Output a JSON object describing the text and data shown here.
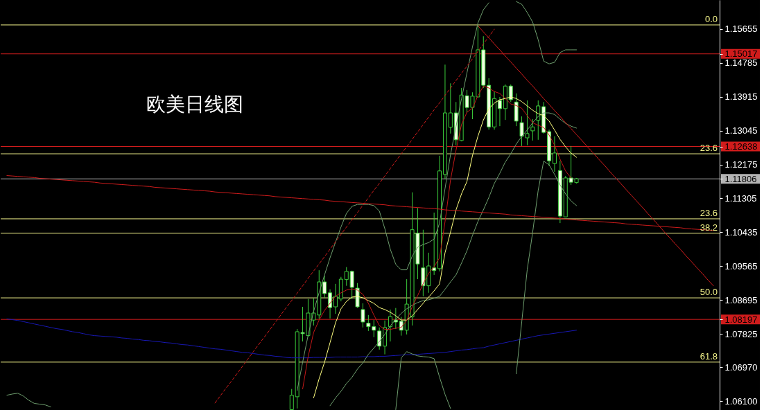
{
  "chart_data": {
    "type": "candlestick",
    "title": "欧美日线图",
    "color": "#3ccf3c",
    "categories": [
      null,
      null,
      null,
      null,
      null,
      null,
      null,
      null,
      null,
      null,
      null,
      null,
      null,
      null,
      null,
      null,
      null,
      null,
      null,
      null,
      null,
      null,
      null,
      null,
      null,
      null,
      null,
      null,
      null,
      null,
      null,
      null,
      null,
      null,
      null,
      null,
      null,
      null,
      null,
      null,
      null,
      null,
      null,
      null,
      null,
      null,
      null,
      null,
      null,
      null,
      null,
      null,
      null,
      null,
      null,
      null,
      null,
      null,
      null,
      null,
      null,
      null,
      null,
      null,
      null,
      null,
      null,
      null,
      null,
      null,
      null,
      null,
      null,
      null,
      null,
      null,
      null,
      null,
      null,
      null,
      null,
      null,
      null,
      null,
      null,
      null,
      null,
      null,
      null,
      null,
      null,
      null,
      null,
      null,
      null,
      null,
      null,
      null,
      null,
      null,
      null,
      null,
      null,
      null,
      null,
      null,
      null,
      null,
      null,
      null,
      null,
      null,
      null,
      null,
      null,
      null,
      null,
      null,
      null,
      null,
      null,
      null,
      null,
      null,
      null,
      null,
      null,
      null,
      null,
      null
    ],
    "ohlc": [
      null,
      null,
      null,
      null,
      null,
      null,
      null,
      null,
      null,
      null,
      null,
      null,
      null,
      null,
      null,
      null,
      null,
      null,
      null,
      null,
      null,
      null,
      null,
      null,
      null,
      null,
      null,
      null,
      null,
      null,
      null,
      null,
      null,
      null,
      null,
      null,
      null,
      null,
      null,
      null,
      null,
      null,
      null,
      null,
      null,
      null,
      null,
      null,
      null,
      null,
      null,
      null,
      [
        1.0588,
        1.0641,
        1.0588,
        1.0625
      ],
      [
        1.0621,
        1.0795,
        1.0591,
        1.0788
      ],
      [
        1.0786,
        1.0852,
        1.0763,
        1.0783
      ],
      [
        1.0778,
        1.0872,
        1.0774,
        1.0836
      ],
      [
        1.0818,
        1.0874,
        1.0804,
        1.0836
      ],
      [
        1.0831,
        1.0946,
        1.0822,
        1.0916
      ],
      [
        1.0916,
        1.0932,
        1.0875,
        1.0886
      ],
      [
        1.0888,
        1.0897,
        1.0822,
        1.085
      ],
      [
        1.0852,
        1.0911,
        1.0834,
        1.0879
      ],
      [
        1.0872,
        1.0929,
        1.0866,
        1.0923
      ],
      [
        1.0922,
        1.0954,
        1.0906,
        1.0943
      ],
      [
        1.0943,
        1.0945,
        1.0872,
        1.0902
      ],
      [
        1.09,
        1.0913,
        1.0849,
        1.0852
      ],
      [
        1.0845,
        1.0861,
        1.0799,
        1.0813
      ],
      [
        1.081,
        1.0831,
        1.079,
        1.0801
      ],
      [
        1.0801,
        1.0818,
        1.0774,
        1.0792
      ],
      [
        1.079,
        1.0799,
        1.0742,
        1.0751
      ],
      [
        1.0751,
        1.0817,
        1.073,
        1.0799
      ],
      [
        1.0801,
        1.0845,
        1.0763,
        1.0827
      ],
      [
        1.0818,
        1.0849,
        1.0795,
        1.0813
      ],
      [
        1.0815,
        1.0826,
        1.0778,
        1.0792
      ],
      [
        1.0792,
        1.0923,
        1.0781,
        1.0859
      ],
      [
        1.0826,
        1.1146,
        1.0804,
        1.105
      ],
      [
        1.1041,
        1.1106,
        1.0923,
        1.0962
      ],
      [
        1.0952,
        1.105,
        1.0879,
        1.0906
      ],
      [
        1.0906,
        1.0991,
        1.0888,
        1.0957
      ],
      [
        1.0952,
        1.1094,
        1.0934,
        1.0945
      ],
      [
        1.095,
        1.124,
        1.0943,
        1.1201
      ],
      [
        1.1192,
        1.1474,
        1.1181,
        1.135
      ],
      [
        1.1313,
        1.1426,
        1.1297,
        1.135
      ],
      [
        1.135,
        1.1378,
        1.1267,
        1.1281
      ],
      [
        1.1279,
        1.1414,
        1.1277,
        1.1396
      ],
      [
        1.1394,
        1.1409,
        1.135,
        1.1364
      ],
      [
        1.1364,
        1.1403,
        1.1334,
        1.1393
      ],
      [
        1.1391,
        1.1575,
        1.1391,
        1.1512
      ],
      [
        1.1512,
        1.1547,
        1.1414,
        1.1421
      ],
      [
        1.1421,
        1.1439,
        1.1307,
        1.1314
      ],
      [
        1.1314,
        1.1405,
        1.1307,
        1.1387
      ],
      [
        1.1382,
        1.1391,
        1.1316,
        1.1361
      ],
      [
        1.1361,
        1.1423,
        1.1332,
        1.1419
      ],
      [
        1.1419,
        1.1423,
        1.1378,
        1.1384
      ],
      [
        1.1378,
        1.14,
        1.1316,
        1.1329
      ],
      [
        1.1325,
        1.1341,
        1.1265,
        1.129
      ],
      [
        1.1286,
        1.1382,
        1.1267,
        1.1297
      ],
      [
        1.1304,
        1.1334,
        1.1279,
        1.1314
      ],
      [
        1.1331,
        1.1382,
        1.1281,
        1.1368
      ],
      [
        1.1366,
        1.1378,
        1.1297,
        1.13
      ],
      [
        1.1302,
        1.1307,
        1.1213,
        1.1227
      ],
      [
        1.122,
        1.129,
        1.1199,
        1.1247
      ],
      [
        1.1202,
        1.1227,
        1.1067,
        1.1085
      ],
      [
        1.1083,
        1.1188,
        1.1083,
        1.1183
      ],
      [
        1.1183,
        1.1265,
        1.1165,
        1.1172
      ],
      [
        1.1171,
        1.1183,
        1.1169,
        1.1181
      ],
      null,
      null,
      null,
      null,
      null,
      null,
      null,
      null,
      null,
      null,
      null,
      null,
      null,
      null,
      null,
      null,
      null,
      null,
      null,
      null,
      null,
      null,
      null,
      null,
      null
    ],
    "colors": [
      null,
      null,
      null,
      null,
      null,
      null,
      null,
      null,
      null,
      null,
      null,
      null,
      null,
      null,
      null,
      null,
      null,
      null,
      null,
      null,
      null,
      null,
      null,
      null,
      null,
      null,
      null,
      null,
      null,
      null,
      null,
      null,
      null,
      null,
      null,
      null,
      null,
      null,
      null,
      null,
      null,
      null,
      null,
      null,
      null,
      null,
      null,
      null,
      null,
      null,
      null,
      null,
      "#000000",
      "#000000",
      "#f0ffe0",
      "#000000",
      "#000000",
      "#000000",
      "#f0ffe0",
      "#f0ffe0",
      "#000000",
      "#000000",
      "#000000",
      "#f0ffe0",
      "#f0ffe0",
      "#f0ffe0",
      "#f0ffe0",
      "#f0ffe0",
      "#f0ffe0",
      "#000000",
      "#000000",
      "#f0ffe0",
      "#f0ffe0",
      "#000000",
      "#000000",
      "#f0ffe0",
      "#f0ffe0",
      "#000000",
      "#f0ffe0",
      "#000000",
      "#000000",
      "#000000",
      "#f0ffe0",
      "#000000",
      "#f0ffe0",
      "#000000",
      "#000000",
      "#f0ffe0",
      "#f0ffe0",
      "#000000",
      "#f0ffe0",
      "#000000",
      "#f0ffe0",
      "#f0ffe0",
      "#f0ffe0",
      "#000000",
      "#000000",
      "#000000",
      "#f0ffe0",
      "#f0ffe0",
      "#000000",
      "#f0ffe0",
      "#000000",
      "#f0ffe0",
      "#000000",
      null,
      null,
      null,
      null,
      null,
      null,
      null,
      null,
      null,
      null,
      null,
      null,
      null,
      null,
      null,
      null,
      null,
      null,
      null,
      null,
      null,
      null,
      null,
      null,
      null
    ],
    "series": [
      {
        "type": "line",
        "color": "#1818b4",
        "values": [
          1.0821,
          1.0819,
          1.0817,
          1.0814,
          1.0811,
          1.0808,
          1.0805,
          1.0802,
          1.0799,
          1.0796,
          1.0794,
          1.0791,
          1.0788,
          1.0786,
          1.0783,
          1.078,
          1.0778,
          1.0777,
          1.0776,
          1.0775,
          1.0774,
          1.0772,
          1.0771,
          1.0769,
          1.0768,
          1.0766,
          1.0765,
          1.0763,
          1.0762,
          1.076,
          1.0759,
          1.0757,
          1.0755,
          1.0754,
          1.0752,
          1.075,
          1.0748,
          1.0746,
          1.0744,
          1.0743,
          1.0741,
          1.0739,
          1.0737,
          1.0735,
          1.0734,
          1.0732,
          1.073,
          1.0728,
          1.0727,
          1.0725,
          1.0724,
          1.0722,
          1.0721,
          1.0721,
          1.0721,
          1.0721,
          1.0722,
          1.0722,
          1.0722,
          1.0722,
          1.0723,
          1.0723,
          1.0723,
          1.0723,
          1.0723,
          1.0724,
          1.0724,
          1.0724,
          1.0725,
          1.0725,
          1.0726,
          1.0727,
          1.0728,
          1.0729,
          1.0729,
          1.073,
          1.0731,
          1.0732,
          1.0733,
          1.0734,
          1.0735,
          1.0737,
          1.0739,
          1.0741,
          1.0742,
          1.0744,
          1.0746,
          1.0747,
          1.0751,
          1.0754,
          1.0757,
          1.076,
          1.0763,
          1.0766,
          1.0769,
          1.0772,
          1.0775,
          1.0778,
          1.078,
          1.0782,
          1.0784,
          1.0786,
          1.0788,
          1.079,
          1.0792,
          null,
          null,
          null,
          null,
          null,
          null,
          null,
          null,
          null,
          null,
          null,
          null,
          null,
          null,
          null,
          null,
          null,
          null,
          null,
          null,
          null,
          null,
          null,
          null,
          null
        ]
      },
      {
        "type": "line",
        "color": "#6e9e6e",
        "values": [
          1.0625,
          1.0628,
          1.063,
          1.0623,
          1.0612,
          1.0604,
          1.0602,
          1.06,
          1.0595,
          null,
          null,
          null,
          null,
          null,
          null,
          null,
          null,
          null,
          null,
          null,
          null,
          null,
          null,
          null,
          null,
          null,
          null,
          null,
          null,
          null,
          null,
          null,
          null,
          null,
          null,
          null,
          null,
          null,
          null,
          null,
          null,
          null,
          null,
          null,
          null,
          null,
          null,
          null,
          null,
          null,
          null,
          null,
          null,
          1.0637,
          1.071,
          1.0779,
          1.084,
          1.0888,
          1.0934,
          1.0978,
          1.1018,
          1.1057,
          1.1092,
          1.111,
          1.1115,
          1.1115,
          1.1115,
          1.1112,
          1.1098,
          1.1053,
          1.1,
          1.0961,
          1.0947,
          1.0947,
          1.0982,
          1.1005,
          1.1012,
          1.1017,
          1.1026,
          1.1067,
          1.1156,
          1.1243,
          1.1315,
          1.1386,
          1.1453,
          1.1519,
          1.1581,
          1.1615,
          1.1633,
          null,
          null,
          null,
          null,
          1.1636,
          1.1629,
          1.1608,
          1.1583,
          1.1538,
          1.1483,
          1.1476,
          1.148,
          1.1505,
          1.1512,
          1.1512,
          1.1512,
          null,
          null,
          null,
          null,
          null,
          null,
          null,
          null,
          null,
          null,
          null,
          null,
          null,
          null,
          null,
          null,
          null,
          null,
          null,
          null,
          null,
          null,
          null,
          null,
          null
        ]
      },
      {
        "type": "line",
        "color": "#6e9e6e",
        "values": [
          null,
          null,
          null,
          null,
          null,
          null,
          null,
          null,
          null,
          null,
          null,
          null,
          null,
          null,
          null,
          null,
          null,
          null,
          null,
          null,
          null,
          null,
          null,
          null,
          null,
          null,
          null,
          null,
          null,
          null,
          null,
          null,
          null,
          null,
          null,
          null,
          null,
          null,
          null,
          null,
          null,
          null,
          null,
          null,
          null,
          null,
          null,
          null,
          null,
          null,
          null,
          null,
          null,
          null,
          null,
          null,
          null,
          null,
          null,
          1.0598,
          1.0618,
          1.0635,
          1.0655,
          1.0671,
          1.0692,
          1.0708,
          1.073,
          1.0746,
          1.0763,
          1.0781,
          1.0803,
          1.082,
          1.0835,
          1.0847,
          1.0856,
          1.0863,
          1.0868,
          1.087,
          1.0874,
          1.0879,
          1.0897,
          1.0916,
          1.0934,
          1.0964,
          1.0996,
          1.1035,
          1.1071,
          1.1101,
          1.1133,
          1.1169,
          1.1195,
          1.1224,
          1.1245,
          1.127,
          1.129,
          1.1306,
          1.1325,
          1.1341,
          1.135,
          1.135,
          1.1346,
          1.1334,
          1.1323,
          1.1316,
          1.1311,
          null,
          null,
          null,
          null,
          null,
          null,
          null,
          null,
          null,
          null,
          null,
          null,
          null,
          null,
          null,
          null,
          null,
          null,
          null,
          null,
          null,
          null,
          null,
          null,
          null
        ]
      },
      {
        "type": "line",
        "color": "#6e9e6e",
        "values": [
          null,
          null,
          null,
          null,
          null,
          null,
          null,
          null,
          null,
          null,
          null,
          null,
          null,
          null,
          null,
          null,
          null,
          null,
          null,
          null,
          null,
          null,
          null,
          null,
          null,
          null,
          null,
          null,
          null,
          null,
          null,
          null,
          null,
          null,
          null,
          null,
          null,
          null,
          null,
          null,
          null,
          null,
          null,
          null,
          null,
          null,
          null,
          null,
          null,
          null,
          null,
          null,
          null,
          null,
          null,
          null,
          null,
          null,
          null,
          null,
          null,
          null,
          null,
          null,
          null,
          null,
          null,
          null,
          null,
          null,
          null,
          1.0588,
          1.0721,
          1.0737,
          1.0731,
          1.0726,
          1.0724,
          1.0723,
          1.0719,
          1.0671,
          1.0627,
          1.0591,
          null,
          null,
          null,
          null,
          null,
          null,
          null,
          null,
          null,
          null,
          null,
          1.068,
          1.0813,
          1.0947,
          1.1044,
          1.1151,
          1.1226,
          1.1217,
          1.1192,
          1.1165,
          1.1142,
          1.1124,
          1.1112,
          null,
          null,
          null,
          null,
          null,
          null,
          null,
          null,
          null,
          null,
          null,
          null,
          null,
          null,
          null,
          null,
          null,
          null,
          null,
          null,
          null,
          null,
          null,
          null,
          null
        ]
      },
      {
        "type": "line",
        "color": "#ffff80",
        "values": [
          null,
          null,
          null,
          null,
          null,
          null,
          null,
          null,
          null,
          null,
          null,
          null,
          null,
          null,
          null,
          null,
          null,
          null,
          null,
          null,
          null,
          null,
          null,
          null,
          null,
          null,
          null,
          null,
          null,
          null,
          null,
          null,
          null,
          null,
          null,
          null,
          null,
          null,
          null,
          null,
          null,
          null,
          null,
          null,
          null,
          null,
          null,
          null,
          null,
          null,
          null,
          null,
          null,
          null,
          null,
          null,
          1.0618,
          1.0667,
          1.071,
          1.076,
          1.0811,
          1.0847,
          1.0866,
          1.0877,
          1.0879,
          1.0875,
          1.0868,
          1.0861,
          1.085,
          1.0845,
          1.0838,
          1.0829,
          1.0818,
          1.0818,
          1.0829,
          1.0845,
          1.0861,
          1.0877,
          1.0893,
          1.0911,
          1.0991,
          1.1044,
          1.1101,
          1.1142,
          1.1174,
          1.124,
          1.129,
          1.1332,
          1.1361,
          1.1375,
          1.1384,
          1.1387,
          1.1391,
          1.1387,
          1.1379,
          1.1368,
          1.1357,
          1.1348,
          1.1343,
          1.1329,
          1.1306,
          1.1282,
          1.1263,
          1.1247,
          1.1236,
          null,
          null,
          null,
          null,
          null,
          null,
          null,
          null,
          null,
          null,
          null,
          null,
          null,
          null,
          null,
          null,
          null,
          null,
          null,
          null,
          null,
          null,
          null,
          null,
          null
        ]
      },
      {
        "type": "line",
        "color": "#c41818",
        "values": [
          null,
          null,
          null,
          null,
          null,
          null,
          null,
          null,
          null,
          null,
          null,
          null,
          null,
          null,
          null,
          null,
          null,
          null,
          null,
          null,
          null,
          null,
          null,
          null,
          null,
          null,
          null,
          null,
          null,
          null,
          null,
          null,
          null,
          null,
          null,
          null,
          null,
          null,
          null,
          null,
          null,
          null,
          null,
          null,
          null,
          null,
          null,
          null,
          null,
          null,
          null,
          null,
          null,
          null,
          1.0641,
          1.0724,
          1.0786,
          1.0818,
          1.0843,
          1.0861,
          1.0879,
          1.0888,
          1.0895,
          1.0898,
          1.0895,
          1.0884,
          1.0861,
          1.0831,
          1.0804,
          1.0794,
          1.0794,
          1.0797,
          1.0799,
          1.0817,
          1.0852,
          1.0881,
          1.0911,
          1.0938,
          1.0955,
          1.0978,
          1.1071,
          1.1178,
          1.1254,
          1.132,
          1.1352,
          1.1362,
          1.1394,
          1.1419,
          1.1414,
          1.1405,
          1.14,
          1.1387,
          1.1373,
          1.1369,
          1.1362,
          1.1343,
          1.1325,
          1.1318,
          1.1313,
          1.1293,
          1.1267,
          1.1231,
          1.1201,
          1.1183,
          null,
          null,
          null,
          null,
          null,
          null,
          null,
          null,
          null,
          null,
          null,
          null,
          null,
          null,
          null,
          null,
          null,
          null,
          null,
          null,
          null,
          null,
          null,
          null,
          null,
          null
        ]
      },
      {
        "type": "line",
        "color": "#d01c1c",
        "values": [
          1.1189,
          1.1188,
          1.1187,
          1.1186,
          1.1185,
          1.1184,
          1.1182,
          1.1181,
          1.118,
          1.1179,
          1.1178,
          1.1177,
          1.1176,
          1.1175,
          1.1174,
          1.1173,
          1.1172,
          1.117,
          1.1169,
          1.1168,
          1.1167,
          1.1166,
          1.1165,
          1.1164,
          1.1163,
          1.1162,
          1.1161,
          1.1159,
          1.1158,
          1.1157,
          1.1156,
          1.1155,
          1.1154,
          1.1153,
          1.1152,
          1.1151,
          1.115,
          1.1149,
          1.1147,
          1.1146,
          1.1145,
          1.1144,
          1.1143,
          1.1142,
          1.1141,
          1.114,
          1.1139,
          1.1138,
          1.1137,
          1.1135,
          1.1134,
          1.1133,
          1.1132,
          1.1131,
          1.113,
          1.1129,
          1.1128,
          1.1127,
          1.1126,
          1.1124,
          1.1123,
          1.1122,
          1.1121,
          1.112,
          1.1119,
          1.1118,
          1.1117,
          1.1116,
          1.1115,
          1.1114,
          1.1112,
          1.1111,
          1.111,
          1.1109,
          1.1108,
          1.1107,
          1.1106,
          1.1105,
          1.1104,
          1.1103,
          1.1101,
          1.11,
          1.1099,
          1.1098,
          1.1097,
          1.1096,
          1.1095,
          1.1094,
          1.1093,
          1.1092,
          1.1091,
          1.109,
          1.1088,
          1.1087,
          1.1086,
          1.1085,
          1.1084,
          1.1083,
          1.1082,
          1.1081,
          1.108,
          1.1079,
          1.1077,
          1.1076,
          1.1075,
          1.1074,
          1.1073,
          1.1072,
          1.1071,
          1.107,
          1.1069,
          1.1068,
          1.1067,
          1.1065,
          1.1064,
          1.1063,
          1.1062,
          1.1061,
          1.106,
          1.1059,
          1.1058,
          1.1057,
          1.1056,
          1.1055,
          1.1053,
          1.1052,
          1.1051,
          1.105,
          1.1049,
          1.1048
        ]
      },
      {
        "type": "line",
        "color": "#d01c1c",
        "values": [
          null,
          null,
          null,
          null,
          null,
          null,
          null,
          null,
          null,
          null,
          null,
          null,
          null,
          null,
          null,
          null,
          null,
          null,
          null,
          null,
          null,
          null,
          null,
          null,
          null,
          null,
          null,
          null,
          null,
          null,
          null,
          null,
          null,
          null,
          null,
          null,
          null,
          null,
          null,
          null,
          null,
          null,
          null,
          null,
          null,
          null,
          null,
          null,
          null,
          null,
          null,
          null,
          null,
          null,
          null,
          null,
          null,
          null,
          null,
          null,
          null,
          null,
          null,
          null,
          null,
          null,
          null,
          null,
          null,
          null,
          null,
          null,
          null,
          null,
          null,
          null,
          null,
          null,
          null,
          null,
          null,
          null,
          null,
          null,
          null,
          null,
          1.1574,
          1.1558,
          1.1543,
          1.1527,
          1.1512,
          1.1496,
          1.1481,
          1.1465,
          1.145,
          1.1434,
          1.1419,
          1.1403,
          1.1387,
          1.1372,
          1.1356,
          1.1341,
          1.1325,
          1.131,
          1.1294,
          1.1279,
          1.1263,
          1.1248,
          1.1232,
          1.1217,
          1.1201,
          1.1185,
          1.117,
          1.1154,
          1.1139,
          1.1123,
          1.1108,
          1.1092,
          1.1077,
          1.1061,
          1.1045,
          1.103,
          1.1014,
          1.0999,
          1.0983,
          1.0968,
          1.0952,
          1.0937,
          1.0921,
          1.0906
        ]
      },
      {
        "type": "line",
        "color": "#d01c1c",
        "line_style": "dashed",
        "values": [
          null,
          null,
          null,
          null,
          null,
          null,
          null,
          null,
          null,
          null,
          null,
          null,
          null,
          null,
          null,
          null,
          null,
          null,
          null,
          null,
          null,
          null,
          null,
          null,
          null,
          null,
          null,
          null,
          null,
          null,
          null,
          null,
          null,
          null,
          null,
          null,
          null,
          null,
          1.0605,
          1.0624,
          1.0643,
          1.0661,
          1.068,
          1.0699,
          1.0718,
          1.0737,
          1.0756,
          1.0774,
          1.0793,
          1.0812,
          1.0831,
          1.085,
          1.0868,
          1.0887,
          1.0906,
          1.0925,
          1.0944,
          1.0962,
          1.0981,
          1.1,
          1.1019,
          1.1038,
          1.1057,
          1.1075,
          1.1094,
          1.1113,
          1.1132,
          1.1151,
          1.1169,
          1.1188,
          1.1207,
          1.1226,
          1.1245,
          1.1263,
          1.1282,
          1.1301,
          1.132,
          1.1339,
          1.1358,
          1.1376,
          1.1395,
          1.1414,
          1.1433,
          1.1452,
          1.147,
          1.1489,
          1.1508,
          1.1527,
          1.1546,
          1.1565,
          null,
          null,
          null,
          null,
          null,
          null,
          null,
          null,
          null,
          null,
          null,
          null,
          null,
          null,
          null,
          null,
          null,
          null,
          null,
          null,
          null,
          null,
          null,
          null,
          null,
          null,
          null,
          null,
          null,
          null,
          null,
          null,
          null,
          null,
          null,
          null,
          null,
          null,
          null,
          null
        ]
      }
    ],
    "ylim": [
      1.0587,
      1.164
    ],
    "yticks": [
      1.15655,
      1.15017,
      1.14785,
      1.13915,
      1.13045,
      1.12638,
      1.12175,
      1.11806,
      1.11305,
      1.10435,
      1.09565,
      1.08695,
      1.08197,
      1.07825,
      {
        "value": 1.0697,
        "label": "1.06970"
      },
      {
        "value": 1.061,
        "label": "1.06100"
      }
    ],
    "tick_labels": "y",
    "ref_lines": [
      {
        "axis": "y",
        "value": 1.1576,
        "color": "#f5f58c"
      },
      {
        "axis": "y",
        "value": 1.15017,
        "color": "#d01c1c"
      },
      {
        "axis": "y",
        "value": 1.12638,
        "color": "#d01c1c"
      },
      {
        "axis": "y",
        "value": 1.1245,
        "color": "#f5f58c"
      },
      {
        "axis": "y",
        "value": 1.11806,
        "color": "#b4b4b4"
      },
      {
        "axis": "y",
        "value": 1.1078,
        "color": "#f5f58c"
      },
      {
        "axis": "y",
        "value": 1.1041,
        "color": "#f5f58c"
      },
      {
        "axis": "y",
        "value": 1.0875,
        "color": "#f5f58c"
      },
      {
        "axis": "y",
        "value": 1.08197,
        "color": "#d01c1c"
      },
      {
        "axis": "y",
        "value": 1.071,
        "color": "#f5f58c"
      }
    ],
    "annotations": [
      "0.0",
      "23.6",
      "23.6",
      "38.2",
      "50.0",
      "61.8"
    ]
  }
}
